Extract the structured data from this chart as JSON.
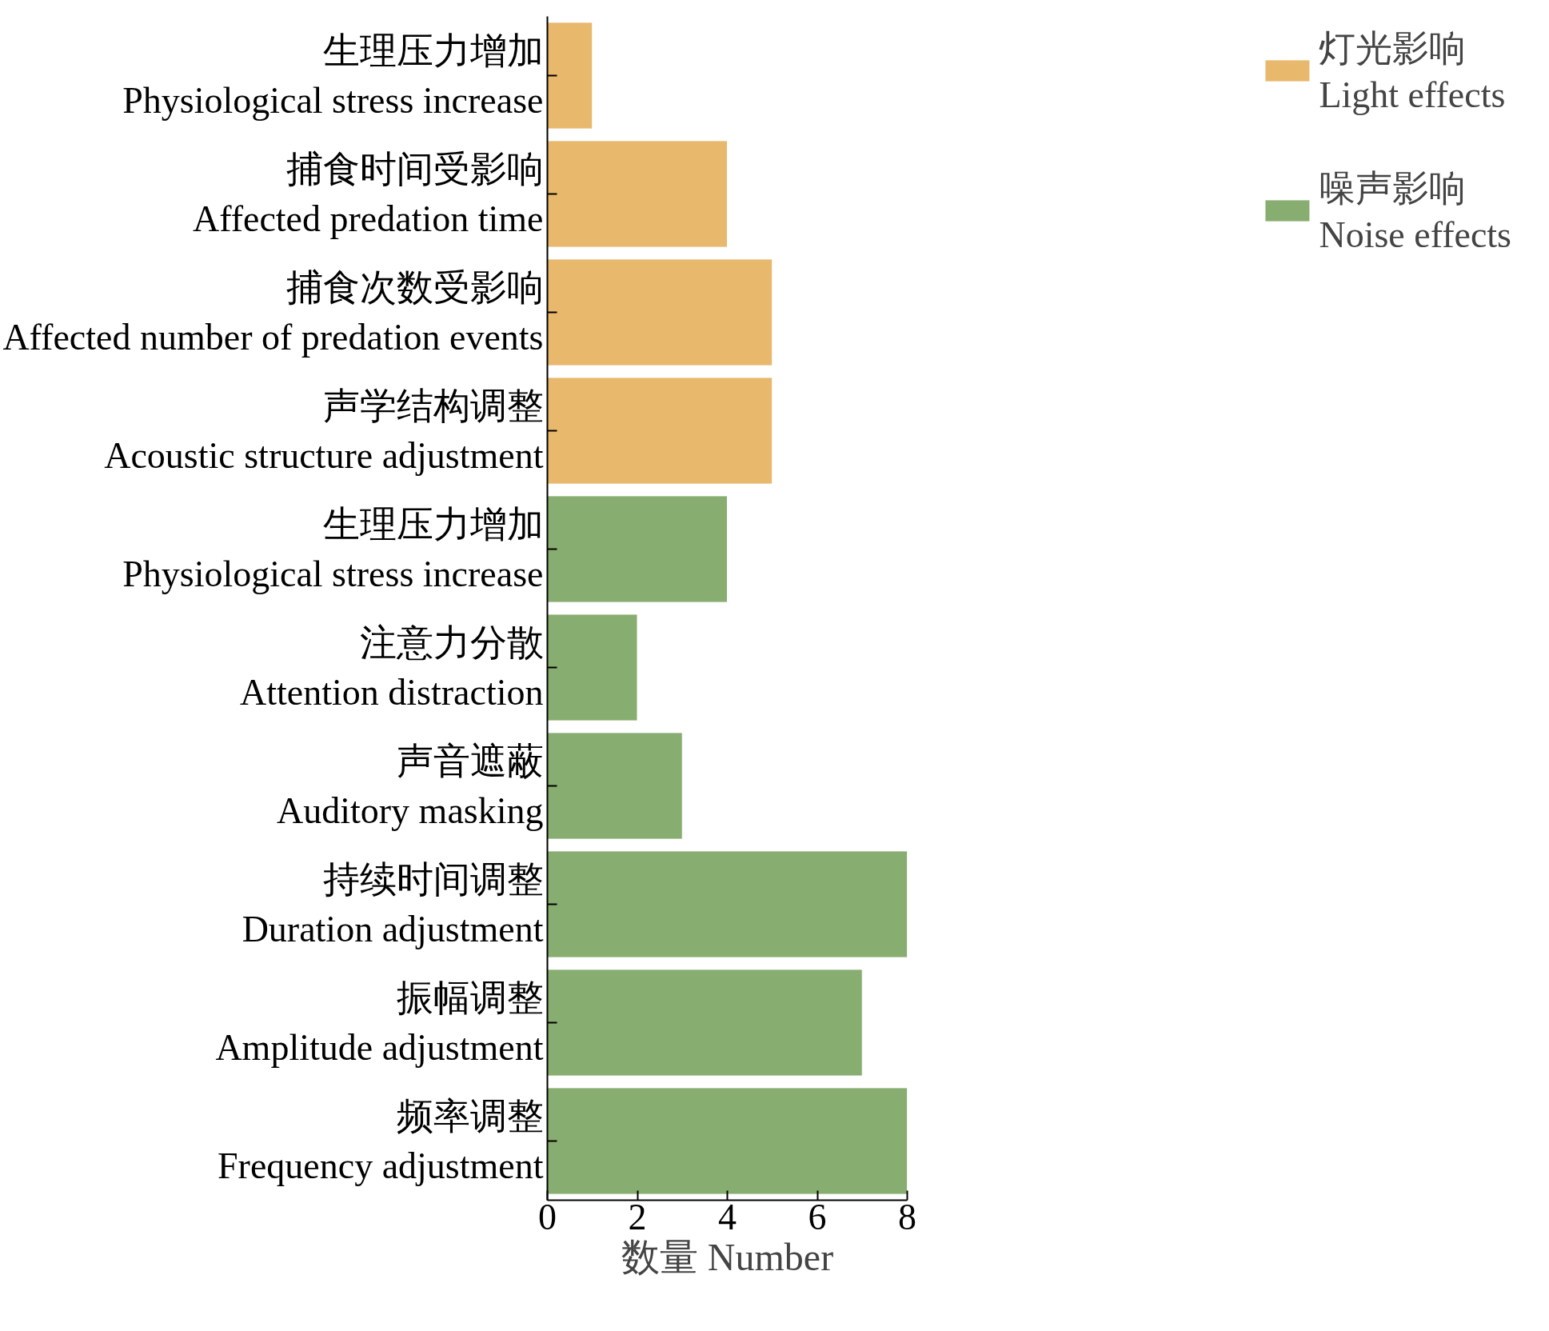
{
  "chart_data": {
    "type": "bar",
    "orientation": "horizontal",
    "xlabel": "数量 Number",
    "categories": [
      "生理压力增加\nPhysiological stress increase",
      "捕食时间受影响\nAffected predation time",
      "捕食次数受影响\nAffected number of predation events",
      "声学结构调整\nAcoustic structure adjustment",
      "生理压力增加\nPhysiological stress increase",
      "注意力分散\nAttention distraction",
      "声音遮蔽\nAuditory masking",
      "持续时间调整\nDuration adjustment",
      "振幅调整\nAmplitude adjustment",
      "频率调整\nFrequency adjustment"
    ],
    "series": [
      {
        "name": "灯光影响\nLight effects",
        "color": "#e8b86d",
        "values": [
          1,
          4,
          5,
          5,
          null,
          null,
          null,
          null,
          null,
          null
        ]
      },
      {
        "name": "噪声影响\nNoise effects",
        "color": "#88ad70",
        "values": [
          null,
          null,
          null,
          null,
          4,
          2,
          3,
          8,
          7,
          8
        ]
      }
    ],
    "xlim": [
      0,
      8
    ],
    "xticks": [
      0,
      2,
      4,
      6,
      8
    ],
    "grid": false,
    "legend": "right"
  }
}
